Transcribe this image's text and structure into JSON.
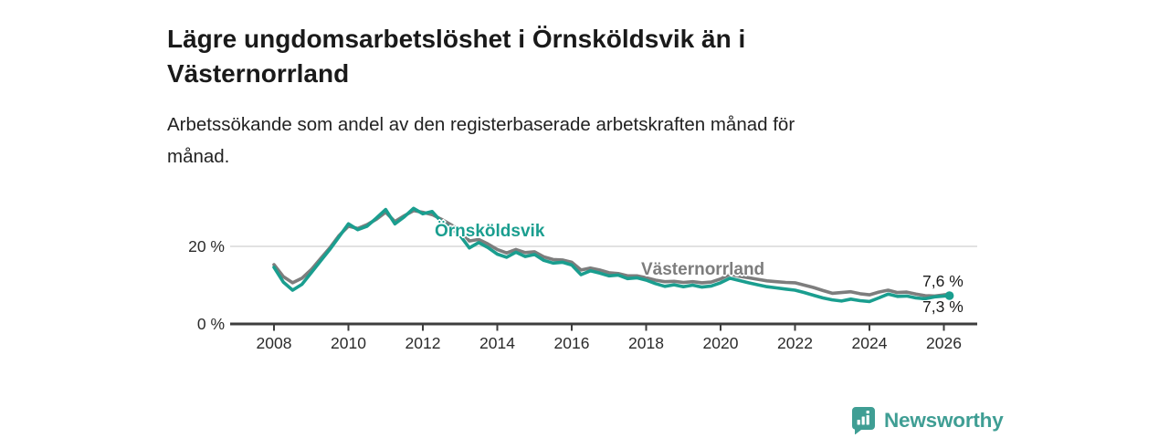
{
  "header": {
    "title_lines": [
      "Lägre ungdomsarbetslöshet i Örnsköldsvik än i",
      "Västernorrland"
    ],
    "subtitle_lines": [
      "Arbetssökande som andel av den registerbaserade arbetskraften månad för",
      "månad."
    ]
  },
  "colors": {
    "ornskoldsvik": "#1a9e8f",
    "vasternorrland": "#7d7d7d",
    "gridline": "#d9d9d9",
    "axis": "#3d3d3d",
    "tick_text": "#2b2b2b",
    "logo": "#3f9e94"
  },
  "chart_data": {
    "type": "line",
    "title": "Lägre ungdomsarbetslöshet i Örnsköldsvik än i Västernorrland",
    "subtitle": "Arbetssökande som andel av den registerbaserade arbetskraften månad för månad.",
    "unit": "%",
    "xlim": [
      2006.9,
      2026.9
    ],
    "ylim": [
      0,
      32
    ],
    "grid": "single-horizontal-at-20",
    "legend_position": "inline-labels",
    "x_ticks": [
      2008,
      2010,
      2012,
      2014,
      2016,
      2018,
      2020,
      2022,
      2024,
      2026
    ],
    "y_ticks": [
      {
        "value": 20,
        "label": "20 %"
      },
      {
        "value": 0,
        "label": "0 %"
      }
    ],
    "x": [
      2008,
      2008.25,
      2008.5,
      2008.75,
      2009,
      2009.25,
      2009.5,
      2009.75,
      2010,
      2010.25,
      2010.5,
      2010.75,
      2011,
      2011.25,
      2011.5,
      2011.75,
      2012,
      2012.25,
      2012.5,
      2012.75,
      2013,
      2013.25,
      2013.5,
      2013.75,
      2014,
      2014.25,
      2014.5,
      2014.75,
      2015,
      2015.25,
      2015.5,
      2015.75,
      2016,
      2016.25,
      2016.5,
      2016.75,
      2017,
      2017.25,
      2017.5,
      2017.75,
      2018,
      2018.25,
      2018.5,
      2018.75,
      2019,
      2019.25,
      2019.5,
      2019.75,
      2020,
      2020.25,
      2020.5,
      2020.75,
      2021,
      2021.25,
      2021.5,
      2021.75,
      2022,
      2022.25,
      2022.5,
      2022.75,
      2023,
      2023.25,
      2023.5,
      2023.75,
      2024,
      2024.25,
      2024.5,
      2024.75,
      2025,
      2025.25,
      2025.5,
      2025.75,
      2026,
      2026.15
    ],
    "series": [
      {
        "name": "Örnsköldsvik",
        "color": "#1a9e8f",
        "end_value_label": "7,3 %",
        "values": [
          14.6,
          10.8,
          8.7,
          10.2,
          13.2,
          16.2,
          19.2,
          22.5,
          25.8,
          24.3,
          25.2,
          27.3,
          29.5,
          25.8,
          27.6,
          29.8,
          28.4,
          29.0,
          26.3,
          24.6,
          22.8,
          19.6,
          21.0,
          19.7,
          18.0,
          17.2,
          18.5,
          17.4,
          17.9,
          16.4,
          15.7,
          15.9,
          15.2,
          12.7,
          13.7,
          13.1,
          12.4,
          12.6,
          11.7,
          11.9,
          11.3,
          10.4,
          9.7,
          10.1,
          9.6,
          10.0,
          9.5,
          9.8,
          10.6,
          11.8,
          11.2,
          10.6,
          10.1,
          9.6,
          9.3,
          9.0,
          8.7,
          8.1,
          7.4,
          6.7,
          6.2,
          5.9,
          6.4,
          6.0,
          5.8,
          6.7,
          7.7,
          7.1,
          7.2,
          6.7,
          6.5,
          7.0,
          7.2,
          7.3
        ]
      },
      {
        "name": "Västernorrland",
        "color": "#7d7d7d",
        "end_value_label": "7,6 %",
        "values": [
          15.3,
          12.2,
          10.6,
          11.8,
          14.0,
          16.8,
          19.6,
          22.8,
          25.2,
          24.6,
          25.6,
          27.0,
          28.8,
          26.4,
          27.9,
          29.2,
          28.8,
          28.2,
          27.0,
          25.6,
          24.2,
          21.4,
          21.8,
          20.6,
          19.2,
          18.3,
          19.2,
          18.4,
          18.6,
          17.3,
          16.6,
          16.5,
          15.9,
          13.9,
          14.4,
          13.9,
          13.2,
          13.0,
          12.4,
          12.4,
          11.9,
          11.3,
          10.9,
          11.0,
          10.7,
          10.9,
          10.6,
          10.8,
          11.6,
          12.8,
          12.3,
          11.9,
          11.5,
          11.1,
          10.9,
          10.7,
          10.6,
          10.0,
          9.4,
          8.6,
          7.9,
          8.1,
          8.3,
          7.8,
          7.5,
          8.2,
          8.7,
          8.1,
          8.2,
          7.7,
          7.3,
          7.2,
          7.5,
          7.6
        ]
      }
    ]
  },
  "annotations": {
    "ornskoldsvik_label": "Örnsköldsvik",
    "vasternorrland_label": "Västernorrland",
    "end_value_top": "7,6 %",
    "end_value_bottom": "7,3 %"
  },
  "footer": {
    "brand": "Newsworthy"
  }
}
